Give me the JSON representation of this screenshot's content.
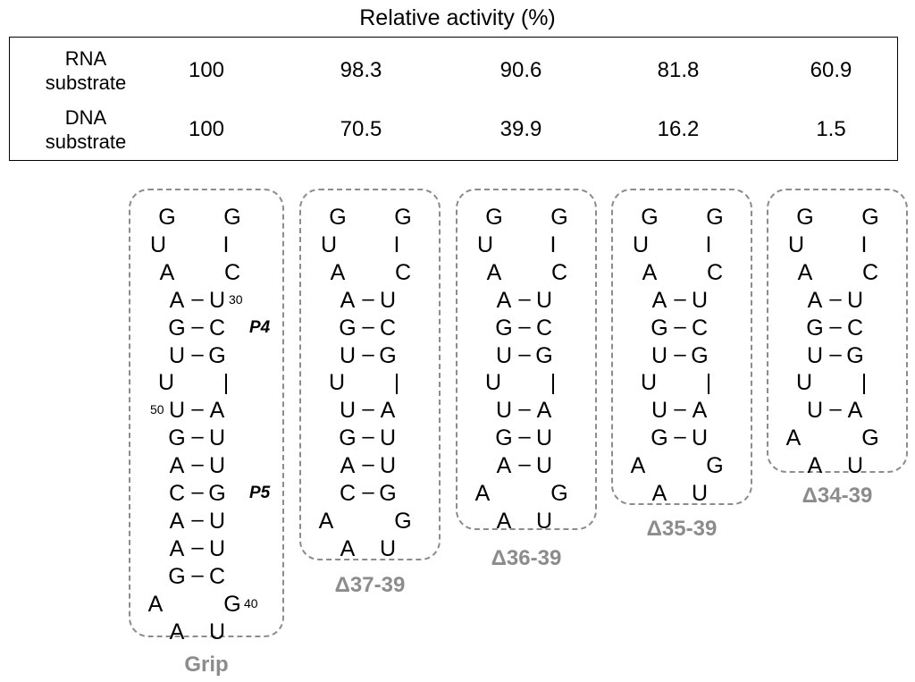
{
  "table": {
    "title": "Relative activity (%)",
    "rows": [
      {
        "label_line1": "RNA",
        "label_line2": "substrate",
        "values": [
          "100",
          "98.3",
          "90.6",
          "81.8",
          "60.9"
        ]
      },
      {
        "label_line1": "DNA",
        "label_line2": "substrate",
        "values": [
          "100",
          "70.5",
          "39.9",
          "16.2",
          "1.5"
        ]
      }
    ]
  },
  "structures": [
    {
      "label": "Grip",
      "rows": [
        [
          "G",
          "",
          "G",
          ""
        ],
        [
          "U",
          "",
          "I",
          ""
        ],
        [
          "A",
          "",
          "C",
          ""
        ],
        [
          "A",
          "–",
          "U",
          "30"
        ],
        [
          "G",
          "–",
          "C",
          "P4"
        ],
        [
          "U",
          "–",
          "G",
          ""
        ],
        [
          "U",
          "",
          "|",
          ""
        ],
        [
          "U",
          "–",
          "A",
          "50"
        ],
        [
          "G",
          "–",
          "U",
          ""
        ],
        [
          "A",
          "–",
          "U",
          ""
        ],
        [
          "C",
          "–",
          "G",
          "P5"
        ],
        [
          "A",
          "–",
          "U",
          ""
        ],
        [
          "A",
          "–",
          "U",
          ""
        ],
        [
          "G",
          "–",
          "C",
          ""
        ],
        [
          "A",
          "",
          "G",
          "40"
        ],
        [
          "A",
          "",
          "U",
          ""
        ]
      ]
    },
    {
      "label": "Δ37-39",
      "rows": [
        [
          "G",
          "",
          "G",
          ""
        ],
        [
          "U",
          "",
          "I",
          ""
        ],
        [
          "A",
          "",
          "C",
          ""
        ],
        [
          "A",
          "–",
          "U",
          ""
        ],
        [
          "G",
          "–",
          "C",
          ""
        ],
        [
          "U",
          "–",
          "G",
          ""
        ],
        [
          "U",
          "",
          "|",
          ""
        ],
        [
          "U",
          "–",
          "A",
          ""
        ],
        [
          "G",
          "–",
          "U",
          ""
        ],
        [
          "A",
          "–",
          "U",
          ""
        ],
        [
          "C",
          "–",
          "G",
          ""
        ],
        [
          "A",
          "",
          "G",
          ""
        ],
        [
          "A",
          "",
          "U",
          ""
        ]
      ]
    },
    {
      "label": "Δ36-39",
      "rows": [
        [
          "G",
          "",
          "G",
          ""
        ],
        [
          "U",
          "",
          "I",
          ""
        ],
        [
          "A",
          "",
          "C",
          ""
        ],
        [
          "A",
          "–",
          "U",
          ""
        ],
        [
          "G",
          "–",
          "C",
          ""
        ],
        [
          "U",
          "–",
          "G",
          ""
        ],
        [
          "U",
          "",
          "|",
          ""
        ],
        [
          "U",
          "–",
          "A",
          ""
        ],
        [
          "G",
          "–",
          "U",
          ""
        ],
        [
          "A",
          "–",
          "U",
          ""
        ],
        [
          "A",
          "",
          "G",
          ""
        ],
        [
          "A",
          "",
          "U",
          ""
        ]
      ]
    },
    {
      "label": "Δ35-39",
      "rows": [
        [
          "G",
          "",
          "G",
          ""
        ],
        [
          "U",
          "",
          "I",
          ""
        ],
        [
          "A",
          "",
          "C",
          ""
        ],
        [
          "A",
          "–",
          "U",
          ""
        ],
        [
          "G",
          "–",
          "C",
          ""
        ],
        [
          "U",
          "–",
          "G",
          ""
        ],
        [
          "U",
          "",
          "|",
          ""
        ],
        [
          "U",
          "–",
          "A",
          ""
        ],
        [
          "G",
          "–",
          "U",
          ""
        ],
        [
          "A",
          "",
          "G",
          ""
        ],
        [
          "A",
          "",
          "U",
          ""
        ]
      ]
    },
    {
      "label": "Δ34-39",
      "rows": [
        [
          "G",
          "",
          "G",
          ""
        ],
        [
          "U",
          "",
          "I",
          ""
        ],
        [
          "A",
          "",
          "C",
          ""
        ],
        [
          "A",
          "–",
          "U",
          ""
        ],
        [
          "G",
          "–",
          "C",
          ""
        ],
        [
          "U",
          "–",
          "G",
          ""
        ],
        [
          "U",
          "",
          "|",
          ""
        ],
        [
          "U",
          "–",
          "A",
          ""
        ],
        [
          "A",
          "",
          "G",
          ""
        ],
        [
          "A",
          "",
          "U",
          ""
        ]
      ]
    }
  ]
}
